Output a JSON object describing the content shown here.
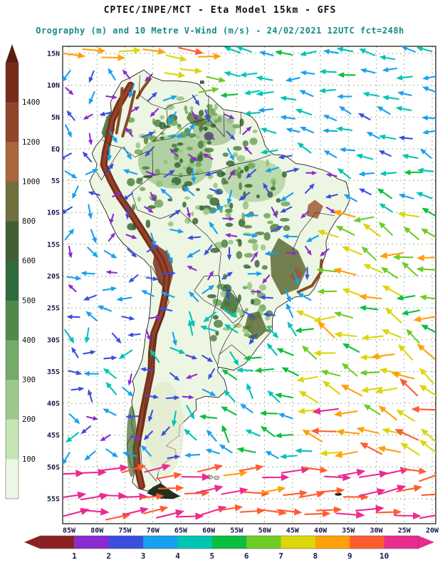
{
  "header": {
    "title": "CPTEC/INPE/MCT -  Eta Model 15km - GFS",
    "subtitle": "Orography (m) and 10 Metre V-Wind (m/s) - 24/02/2021 12UTC fct=248h",
    "title_color": "#111111",
    "subtitle_color": "#148b8b"
  },
  "chart_data": {
    "type": "vector-field-map",
    "region": "South America",
    "shaded_field": "Orography (m)",
    "vector_field": "10 Metre V-Wind (m/s)",
    "model": "Eta Model 15km",
    "boundary_input": "GFS",
    "valid_time": "24/02/2021 12UTC",
    "forecast_hour": "fct=248h",
    "axes": {
      "lat_ticks": [
        "15N",
        "10N",
        "5N",
        "EQ",
        "5S",
        "10S",
        "15S",
        "20S",
        "25S",
        "30S",
        "35S",
        "40S",
        "45S",
        "50S",
        "55S"
      ],
      "lon_ticks": [
        "85W",
        "80W",
        "75W",
        "70W",
        "65W",
        "60W",
        "55W",
        "50W",
        "45W",
        "40W",
        "35W",
        "30W",
        "25W",
        "20W"
      ],
      "grid_style": "dashed"
    },
    "orography_scale": {
      "units": "m",
      "tick_labels": [
        "1400",
        "1200",
        "1000",
        "800",
        "600",
        "500",
        "400",
        "300",
        "200",
        "100"
      ],
      "arrow_color": "#591f10",
      "colors_top_to_bottom": [
        "#772b19",
        "#92452a",
        "#aa663c",
        "#72703c",
        "#415e33",
        "#2f6b3c",
        "#4f8a4a",
        "#74ab67",
        "#9cc98b",
        "#c6e4b4",
        "#ecf7e4"
      ]
    },
    "wind_scale": {
      "units": "m/s",
      "tick_labels": [
        "1",
        "2",
        "3",
        "4",
        "5",
        "6",
        "7",
        "8",
        "9",
        "10"
      ],
      "below_min_color": "#8b2020",
      "segment_colors": [
        "#8a2bd0",
        "#3a4fdd",
        "#18a0f0",
        "#00c4b4",
        "#0cbe3e",
        "#6ecc26",
        "#dcd60a",
        "#ffa10a",
        "#ff5c30"
      ],
      "above_max_color": "#ea2b90"
    },
    "wind_field": {
      "grid_spacing_px": 28,
      "seed": 11,
      "arrow_rule": "arrow length and color proportional to wind speed (m/s)"
    }
  }
}
